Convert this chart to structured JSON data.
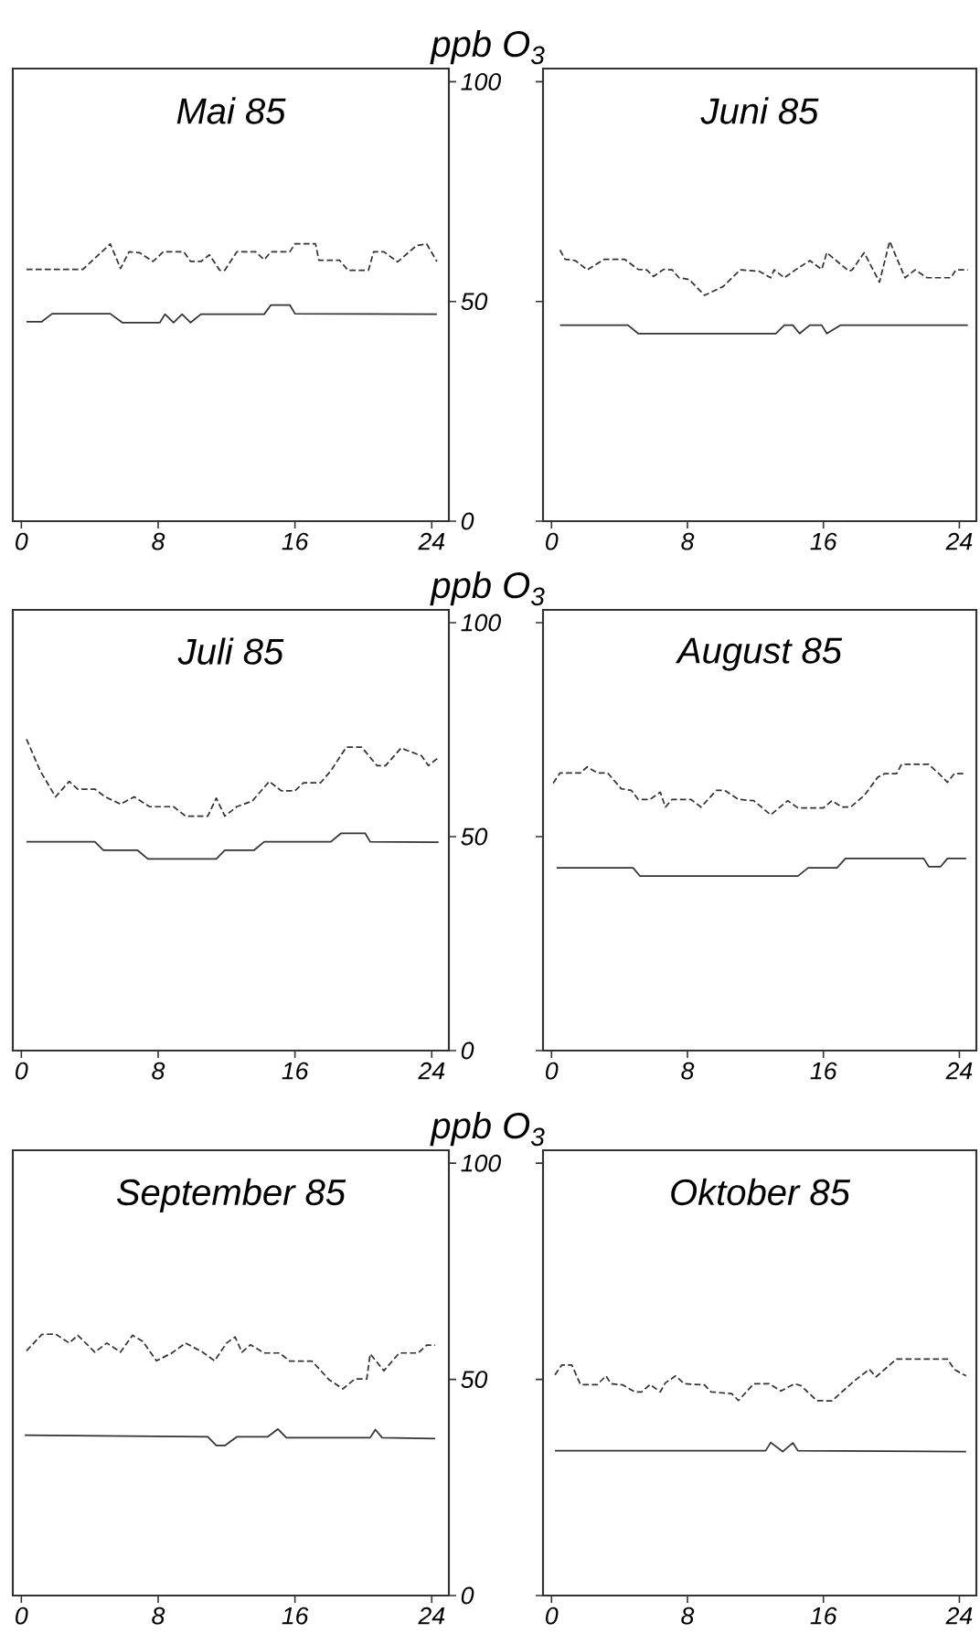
{
  "chart_data": [
    {
      "type": "line",
      "title": "Mai 85",
      "ylabel": "ppb O$_{3}$",
      "xlim": [
        -0.5,
        25
      ],
      "ylim": [
        0,
        103
      ],
      "xticks": [
        0,
        8,
        16,
        24
      ],
      "yticks": [
        0,
        50,
        100
      ],
      "series": [
        {
          "color": "#333333",
          "line_style": "dashed",
          "x": [
            0.3,
            3.6,
            5.2,
            5.8,
            6.3,
            6.9,
            7.7,
            8.3,
            9.5,
            9.9,
            10.5,
            11.0,
            11.6,
            11.9,
            12.6,
            13.7,
            14.2,
            14.6,
            15.7,
            16.0,
            17.2,
            17.4,
            18.6,
            19.1,
            20.3,
            20.6,
            21.2,
            22.0,
            23.1,
            23.7,
            24.3
          ],
          "values": [
            57.3,
            57.3,
            63.1,
            57.5,
            61.3,
            61.1,
            59.1,
            61.3,
            61.3,
            59.1,
            59.1,
            60.6,
            57.1,
            57.1,
            61.3,
            61.3,
            59.5,
            61.3,
            61.3,
            63.1,
            63.1,
            59.4,
            59.4,
            57.1,
            57.1,
            61.3,
            61.3,
            59.0,
            62.7,
            63.1,
            59.1
          ]
        },
        {
          "color": "#333333",
          "line_style": "solid",
          "x": [
            0.3,
            1.2,
            1.8,
            5.2,
            5.9,
            8.1,
            8.4,
            8.9,
            9.4,
            9.9,
            10.5,
            14.2,
            14.6,
            15.7,
            16.0,
            24.3
          ],
          "values": [
            45.4,
            45.4,
            47.2,
            47.2,
            45.2,
            45.2,
            47.1,
            45.2,
            47.1,
            45.2,
            47.1,
            47.1,
            49.2,
            49.2,
            47.2,
            47.1
          ]
        }
      ]
    },
    {
      "type": "line",
      "title": "Juni 85",
      "xlim": [
        -0.5,
        25
      ],
      "ylim": [
        0,
        103
      ],
      "xticks": [
        0,
        8,
        16,
        24
      ],
      "yticks": [
        0,
        50,
        100
      ],
      "tick_labels": "x",
      "series": [
        {
          "color": "#333333",
          "line_style": "dashed",
          "x": [
            0.5,
            0.8,
            1.4,
            2.1,
            3.1,
            4.3,
            5.1,
            5.6,
            6.0,
            6.6,
            7.1,
            7.5,
            8.1,
            9.0,
            10.1,
            11.1,
            12.2,
            12.9,
            13.1,
            13.7,
            14.4,
            15.2,
            15.9,
            16.2,
            17.5,
            17.7,
            18.4,
            19.3,
            19.9,
            20.8,
            21.4,
            22.1,
            23.5,
            23.8,
            24.5
          ],
          "values": [
            61.7,
            59.6,
            59.3,
            57.2,
            59.6,
            59.6,
            57.3,
            57.2,
            55.7,
            57.3,
            57.2,
            55.4,
            55.0,
            51.4,
            53.4,
            57.2,
            56.9,
            55.4,
            57.2,
            55.4,
            57.3,
            59.3,
            57.3,
            61.1,
            56.9,
            57.2,
            61.1,
            54.4,
            63.7,
            55.4,
            57.2,
            55.4,
            55.4,
            57.2,
            57.2
          ]
        },
        {
          "color": "#333333",
          "line_style": "solid",
          "x": [
            0.5,
            4.5,
            5.1,
            13.2,
            13.7,
            14.2,
            14.6,
            15.2,
            15.9,
            16.2,
            17.0,
            24.5
          ],
          "values": [
            44.6,
            44.6,
            42.7,
            42.7,
            44.6,
            44.6,
            42.7,
            44.6,
            44.6,
            42.7,
            44.6,
            44.6
          ]
        }
      ]
    },
    {
      "type": "line",
      "title": "Juli 85",
      "ylabel": "ppb O$_{3}$",
      "xlim": [
        -0.5,
        25
      ],
      "ylim": [
        0,
        103
      ],
      "xticks": [
        0,
        8,
        16,
        24
      ],
      "yticks": [
        0,
        50,
        100
      ],
      "series": [
        {
          "color": "#333333",
          "line_style": "dashed",
          "x": [
            0.3,
            1.1,
            2.0,
            2.8,
            3.3,
            4.3,
            4.9,
            5.8,
            6.6,
            7.5,
            8.9,
            9.6,
            10.9,
            11.4,
            11.9,
            12.6,
            13.5,
            14.5,
            15.2,
            16.0,
            16.5,
            17.5,
            18.1,
            19.0,
            19.9,
            20.8,
            21.3,
            22.2,
            23.4,
            23.8,
            24.4
          ],
          "values": [
            72.8,
            65.4,
            59.3,
            62.9,
            61.1,
            61.1,
            59.3,
            57.6,
            59.3,
            57.0,
            57.0,
            54.8,
            54.8,
            59.0,
            54.8,
            57.0,
            58.3,
            62.9,
            60.7,
            60.7,
            62.6,
            62.6,
            65.4,
            70.9,
            70.9,
            66.6,
            66.6,
            70.7,
            68.9,
            66.6,
            68.5
          ]
        },
        {
          "color": "#333333",
          "line_style": "solid",
          "x": [
            0.3,
            4.3,
            4.8,
            6.8,
            7.4,
            11.4,
            11.9,
            13.6,
            14.2,
            18.1,
            18.7,
            20.1,
            20.4,
            24.4
          ],
          "values": [
            48.8,
            48.8,
            46.8,
            46.8,
            44.8,
            44.8,
            46.8,
            46.8,
            48.8,
            48.8,
            50.8,
            50.8,
            48.8,
            48.7
          ]
        }
      ]
    },
    {
      "type": "line",
      "title": "August 85",
      "xlim": [
        -0.5,
        25
      ],
      "ylim": [
        0,
        103
      ],
      "xticks": [
        0,
        8,
        16,
        24
      ],
      "yticks": [
        0,
        50,
        100
      ],
      "tick_labels": "x",
      "series": [
        {
          "color": "#333333",
          "line_style": "dashed",
          "x": [
            0.1,
            0.5,
            1.7,
            2.1,
            2.7,
            3.3,
            4.1,
            4.7,
            5.1,
            5.8,
            6.4,
            6.7,
            7.1,
            8.2,
            8.8,
            9.7,
            10.2,
            11.0,
            11.9,
            12.9,
            13.9,
            14.5,
            16.0,
            16.5,
            17.1,
            17.6,
            18.4,
            19.2,
            19.6,
            20.3,
            20.6,
            22.2,
            22.8,
            23.3,
            23.7,
            24.3
          ],
          "values": [
            62.5,
            64.9,
            64.9,
            66.3,
            64.9,
            64.9,
            61.2,
            60.8,
            58.7,
            58.7,
            60.4,
            56.9,
            58.7,
            58.7,
            56.9,
            60.8,
            60.8,
            58.7,
            58.4,
            55.1,
            58.4,
            56.7,
            56.7,
            58.4,
            56.9,
            56.9,
            59.6,
            63.9,
            64.7,
            64.7,
            66.9,
            66.9,
            64.7,
            62.7,
            64.7,
            64.7
          ]
        },
        {
          "color": "#333333",
          "line_style": "solid",
          "x": [
            0.3,
            4.8,
            5.2,
            14.5,
            15.1,
            16.8,
            17.3,
            21.9,
            22.2,
            22.9,
            23.3,
            24.4
          ],
          "values": [
            42.7,
            42.7,
            40.8,
            40.8,
            42.7,
            42.7,
            44.9,
            44.9,
            43.0,
            43.0,
            44.9,
            44.9
          ]
        }
      ]
    },
    {
      "type": "line",
      "title": "September 85",
      "ylabel": "ppb O$_{3}$",
      "xlim": [
        -0.5,
        25
      ],
      "ylim": [
        0,
        103
      ],
      "xticks": [
        0,
        8,
        16,
        24
      ],
      "yticks": [
        0,
        50,
        100
      ],
      "series": [
        {
          "color": "#333333",
          "line_style": "dashed",
          "x": [
            0.3,
            1.2,
            2.0,
            2.8,
            3.3,
            4.3,
            5.0,
            5.8,
            6.5,
            7.1,
            7.9,
            8.8,
            9.6,
            10.6,
            11.3,
            12.0,
            12.5,
            12.9,
            13.4,
            14.2,
            15.1,
            15.7,
            17.0,
            18.0,
            18.8,
            19.5,
            20.2,
            20.4,
            21.2,
            22.1,
            23.2,
            23.7,
            24.2
          ],
          "values": [
            56.6,
            60.4,
            60.5,
            58.4,
            60.2,
            56.3,
            58.4,
            56.3,
            60.2,
            58.8,
            54.3,
            56.1,
            58.4,
            56.3,
            54.3,
            58.4,
            59.8,
            56.3,
            58.0,
            56.1,
            56.1,
            54.2,
            54.2,
            49.9,
            47.8,
            50.1,
            50.1,
            55.9,
            52.0,
            56.1,
            56.1,
            57.9,
            57.9
          ]
        },
        {
          "color": "#333333",
          "line_style": "solid",
          "x": [
            0.2,
            10.9,
            11.4,
            11.9,
            12.6,
            14.4,
            15.0,
            15.5,
            20.4,
            20.7,
            21.1,
            24.2
          ],
          "values": [
            37.1,
            36.7,
            34.7,
            34.7,
            36.7,
            36.7,
            38.5,
            36.5,
            36.5,
            38.4,
            36.5,
            36.3
          ]
        }
      ]
    },
    {
      "type": "line",
      "title": "Oktober 85",
      "xlim": [
        -0.5,
        25
      ],
      "ylim": [
        0,
        103
      ],
      "xticks": [
        0,
        8,
        16,
        24
      ],
      "yticks": [
        0,
        50,
        100
      ],
      "tick_labels": "x",
      "series": [
        {
          "color": "#333333",
          "line_style": "dashed",
          "x": [
            0.2,
            0.6,
            1.2,
            1.7,
            2.7,
            3.2,
            3.5,
            4.2,
            4.9,
            5.3,
            5.8,
            6.4,
            6.7,
            7.3,
            7.8,
            9.0,
            9.4,
            10.6,
            11.0,
            11.9,
            12.8,
            13.5,
            14.3,
            14.7,
            15.6,
            16.5,
            17.8,
            18.7,
            19.1,
            20.3,
            23.3,
            23.7,
            24.4
          ],
          "values": [
            51.0,
            53.3,
            53.3,
            48.8,
            48.8,
            50.8,
            49.0,
            48.7,
            47.1,
            47.1,
            48.8,
            47.1,
            49.2,
            50.8,
            49.0,
            48.7,
            47.1,
            46.7,
            45.1,
            49.0,
            49.0,
            47.3,
            49.0,
            48.5,
            45.1,
            45.0,
            49.6,
            52.3,
            50.6,
            54.7,
            54.7,
            52.3,
            50.8
          ]
        },
        {
          "color": "#333333",
          "line_style": "solid",
          "x": [
            0.2,
            12.6,
            12.9,
            13.6,
            14.2,
            14.5,
            24.4
          ],
          "values": [
            33.5,
            33.5,
            35.4,
            33.3,
            35.3,
            33.5,
            33.3
          ]
        }
      ]
    }
  ]
}
